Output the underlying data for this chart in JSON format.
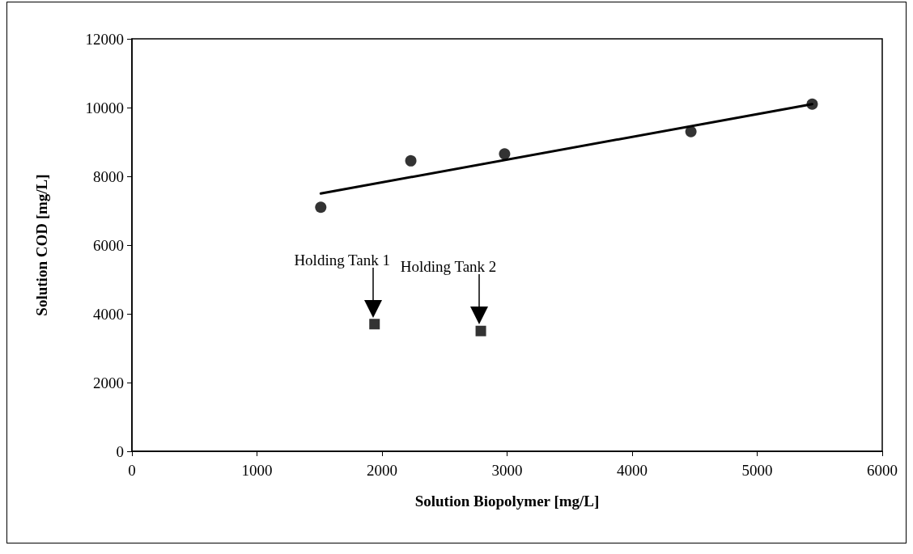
{
  "chart_data": {
    "type": "scatter",
    "xlabel": "Solution Biopolymer [mg/L]",
    "ylabel": "Solution COD [mg/L]",
    "xlim": [
      0,
      6000
    ],
    "xticks": [
      0,
      1000,
      2000,
      3000,
      4000,
      5000,
      6000
    ],
    "ylim": [
      0,
      12000
    ],
    "yticks": [
      0,
      2000,
      4000,
      6000,
      8000,
      10000,
      12000
    ],
    "grid": false,
    "series": [
      {
        "marker": "circle",
        "color": "#000000",
        "x": [
          1510,
          2230,
          2980,
          4470,
          5440
        ],
        "values": [
          7100,
          8450,
          8650,
          9300,
          10100
        ]
      },
      {
        "type": "line",
        "marker": "none",
        "line_style": "solid",
        "color": "#000000",
        "x": [
          1510,
          5440
        ],
        "values": [
          7500,
          10100
        ]
      },
      {
        "marker": "square",
        "color": "#000000",
        "x": [
          1940,
          2790
        ],
        "values": [
          3700,
          3500
        ]
      }
    ],
    "annotations": [
      "Holding Tank 1",
      "Holding Tank 2"
    ]
  }
}
